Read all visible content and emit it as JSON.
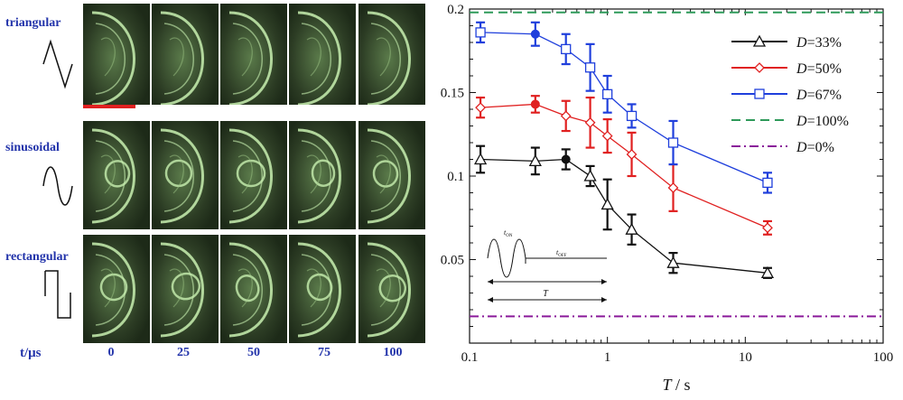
{
  "panels": [
    {
      "label": "triangular",
      "wave": "triangle-icon"
    },
    {
      "label": "sinusoidal",
      "wave": "sine-icon"
    },
    {
      "label": "rectangular",
      "wave": "square-icon"
    }
  ],
  "time_axis_label": "t/μs",
  "time_ticks": [
    "0",
    "25",
    "50",
    "75",
    "100"
  ],
  "colors": {
    "frame_bg": "#1d2a18",
    "frame_glow": "#c8f0b0",
    "scale_bar": "#e02020",
    "label_blue": "#2233aa"
  },
  "chart_data": {
    "type": "line",
    "x_scale": "log",
    "xlim": [
      0.1,
      100
    ],
    "ylim": [
      0.0,
      0.2
    ],
    "xlabel": "T / s",
    "ylabel": "",
    "x_ticks": [
      0.1,
      1,
      10,
      100
    ],
    "x_tick_labels": [
      "0.1",
      "1",
      "10",
      "100"
    ],
    "y_ticks": [
      0.05,
      0.1,
      0.15,
      0.2
    ],
    "y_tick_labels": [
      "0.05",
      "0.1",
      "0.15",
      "0.2"
    ],
    "legend_position": "top-right",
    "series": [
      {
        "name": "D=33%",
        "color": "#111111",
        "marker": "triangle",
        "style": "solid",
        "x": [
          0.12,
          0.3,
          0.5,
          0.75,
          1.0,
          1.5,
          3.0,
          14.5
        ],
        "y": [
          0.11,
          0.109,
          0.11,
          0.1,
          0.083,
          0.068,
          0.048,
          0.042
        ],
        "err": [
          0.008,
          0.008,
          0.006,
          0.006,
          0.015,
          0.009,
          0.006,
          0.003
        ],
        "filled": [
          false,
          false,
          true,
          false,
          false,
          false,
          false,
          false
        ]
      },
      {
        "name": "D=50%",
        "color": "#e02020",
        "marker": "diamond",
        "style": "solid",
        "x": [
          0.12,
          0.3,
          0.5,
          0.75,
          1.0,
          1.5,
          3.0,
          14.5
        ],
        "y": [
          0.141,
          0.143,
          0.136,
          0.132,
          0.124,
          0.113,
          0.093,
          0.069
        ],
        "err": [
          0.006,
          0.005,
          0.009,
          0.015,
          0.01,
          0.013,
          0.014,
          0.004
        ],
        "filled": [
          false,
          true,
          false,
          false,
          false,
          false,
          false,
          false
        ]
      },
      {
        "name": "D=67%",
        "color": "#1f3fdc",
        "marker": "square",
        "style": "solid",
        "x": [
          0.12,
          0.3,
          0.5,
          0.75,
          1.0,
          1.5,
          3.0,
          14.5
        ],
        "y": [
          0.186,
          0.185,
          0.176,
          0.165,
          0.149,
          0.136,
          0.12,
          0.096
        ],
        "err": [
          0.006,
          0.007,
          0.009,
          0.014,
          0.011,
          0.007,
          0.013,
          0.006
        ],
        "filled": [
          false,
          true,
          false,
          false,
          false,
          false,
          false,
          false
        ]
      },
      {
        "name": "D=100%",
        "color": "#2e9a5a",
        "style": "dashed",
        "hline": 0.198
      },
      {
        "name": "D=0%",
        "color": "#8a1a9a",
        "style": "dashdot",
        "hline": 0.016
      }
    ],
    "inset": {
      "t_on": "t",
      "t_on_sub": "ON",
      "t_off": "t",
      "t_off_sub": "OFF",
      "period": "T"
    }
  }
}
